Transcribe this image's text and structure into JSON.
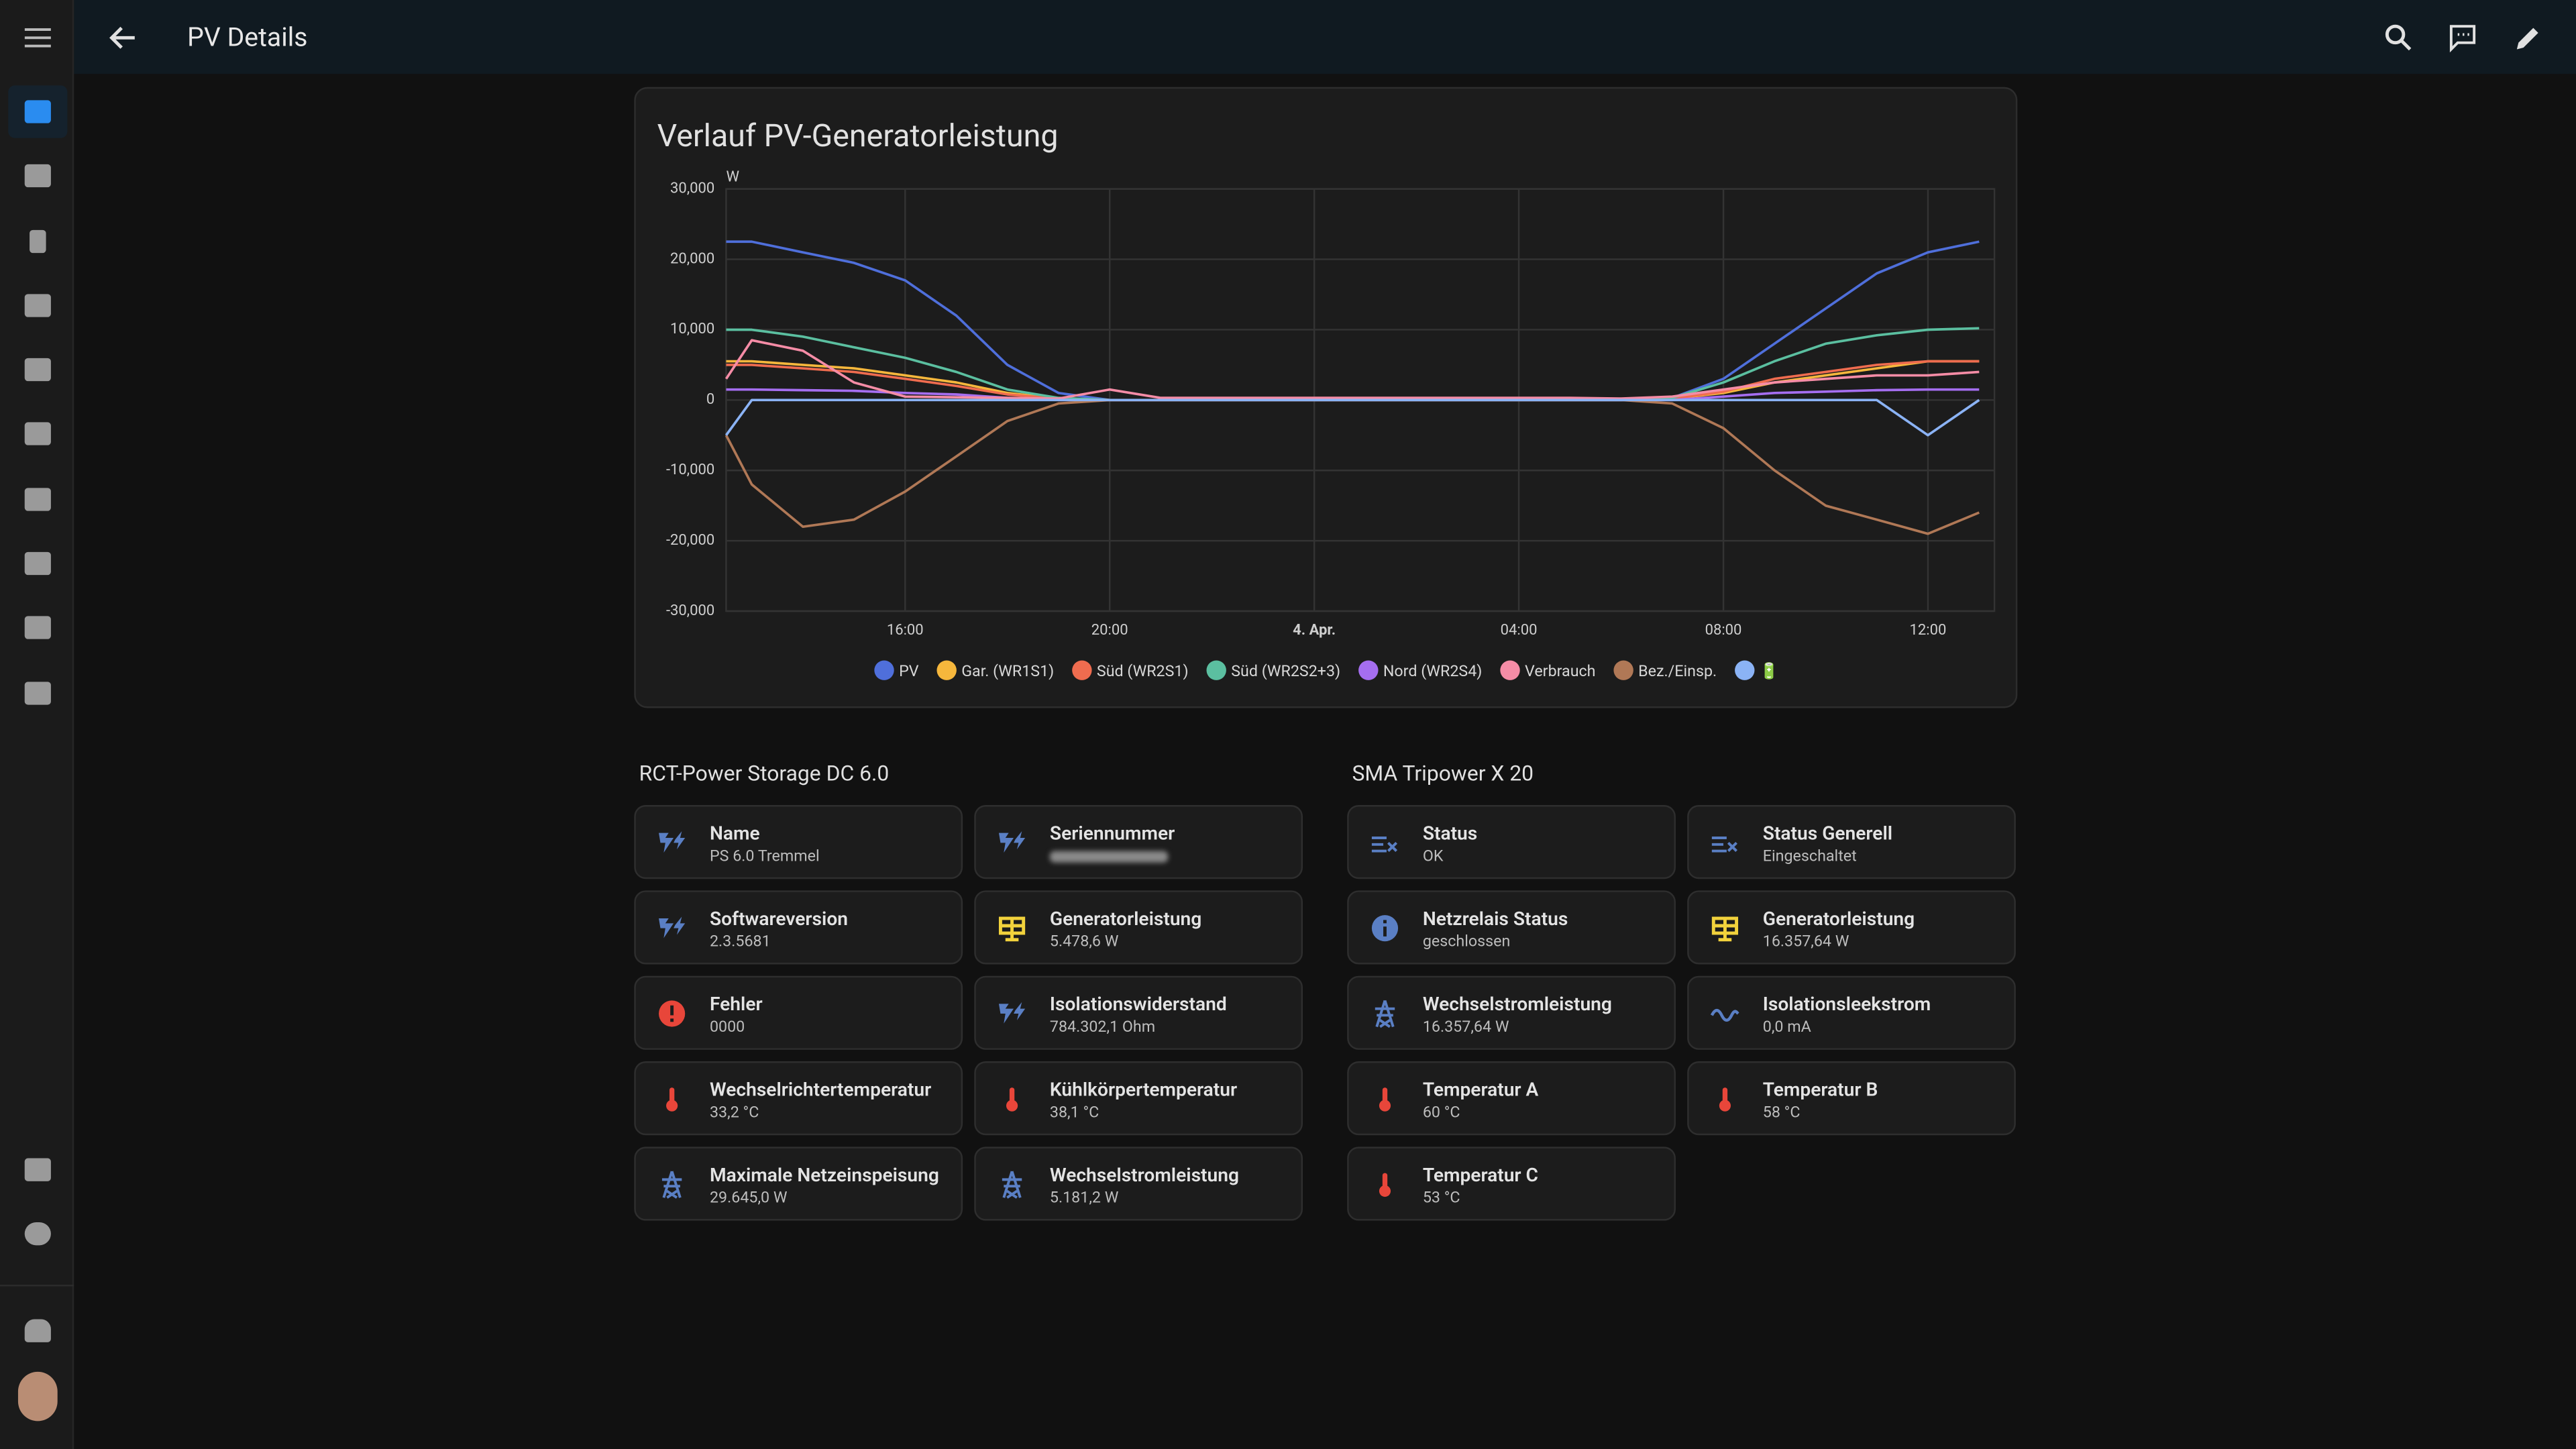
{
  "header": {
    "title": "PV Details"
  },
  "chart_data": {
    "type": "line",
    "title": "Verlauf PV-Generatorleistung",
    "y_label": "W",
    "x": [
      12.5,
      13,
      14,
      15,
      16,
      17,
      18,
      19,
      20,
      21,
      22,
      23,
      24,
      25,
      26,
      27,
      28,
      29,
      30,
      31,
      32,
      33,
      34,
      35,
      36,
      37
    ],
    "xlim": [
      12.5,
      37.3
    ],
    "xticks": [
      {
        "value": 16,
        "label": "16:00"
      },
      {
        "value": 20,
        "label": "20:00"
      },
      {
        "value": 24,
        "label": "4. Apr."
      },
      {
        "value": 28,
        "label": "04:00"
      },
      {
        "value": 32,
        "label": "08:00"
      },
      {
        "value": 36,
        "label": "12:00"
      }
    ],
    "ylim": [
      -30000,
      30000
    ],
    "yticks": [
      {
        "value": -30000,
        "label": "-30,000"
      },
      {
        "value": -20000,
        "label": "-20,000"
      },
      {
        "value": -10000,
        "label": "-10,000"
      },
      0,
      {
        "value": 10000,
        "label": "10,000"
      },
      {
        "value": 20000,
        "label": "20,000"
      },
      {
        "value": 30000,
        "label": "30,000"
      }
    ],
    "grid": true,
    "series": [
      {
        "name": "PV",
        "color": "#4f6fdb",
        "values": [
          22500,
          22500,
          21000,
          19500,
          17000,
          12000,
          5000,
          1000,
          0,
          0,
          0,
          0,
          0,
          0,
          0,
          0,
          0,
          0,
          0,
          300,
          3000,
          8000,
          13000,
          18000,
          21000,
          22500
        ]
      },
      {
        "name": "Gar. (WR1S1)",
        "color": "#f6b73c",
        "values": [
          5500,
          5500,
          5000,
          4500,
          3500,
          2500,
          1000,
          200,
          0,
          0,
          0,
          0,
          0,
          0,
          0,
          0,
          0,
          0,
          0,
          200,
          1000,
          2500,
          3500,
          4500,
          5500,
          5500
        ]
      },
      {
        "name": "Süd (WR2S1)",
        "color": "#ef6c4f",
        "values": [
          5000,
          5000,
          4500,
          4000,
          3000,
          2000,
          800,
          200,
          0,
          0,
          0,
          0,
          0,
          0,
          0,
          0,
          0,
          0,
          0,
          200,
          1200,
          3000,
          4000,
          5000,
          5500,
          5500
        ]
      },
      {
        "name": "Süd (WR2S2+3)",
        "color": "#5bbfa0",
        "values": [
          10000,
          10000,
          9000,
          7500,
          6000,
          4000,
          1500,
          300,
          0,
          0,
          0,
          0,
          0,
          0,
          0,
          0,
          0,
          0,
          0,
          300,
          2500,
          5500,
          8000,
          9200,
          10000,
          10200
        ]
      },
      {
        "name": "Nord (WR2S4)",
        "color": "#a56ef0",
        "values": [
          1500,
          1500,
          1400,
          1300,
          1000,
          800,
          300,
          0,
          0,
          0,
          0,
          0,
          0,
          0,
          0,
          0,
          0,
          0,
          0,
          0,
          500,
          1000,
          1200,
          1400,
          1500,
          1500
        ]
      },
      {
        "name": "Verbrauch",
        "color": "#f58ca6",
        "values": [
          3000,
          8500,
          7000,
          2500,
          500,
          400,
          300,
          200,
          1500,
          300,
          300,
          300,
          300,
          300,
          300,
          300,
          300,
          300,
          200,
          500,
          1500,
          2500,
          3000,
          3500,
          3500,
          4000
        ]
      },
      {
        "name": "Bez./Einsp.",
        "color": "#b07856",
        "values": [
          -5000,
          -12000,
          -18000,
          -17000,
          -13000,
          -8000,
          -3000,
          -500,
          0,
          0,
          0,
          0,
          0,
          0,
          0,
          0,
          0,
          0,
          0,
          -500,
          -4000,
          -10000,
          -15000,
          -17000,
          -19000,
          -16000
        ]
      },
      {
        "name": "🔋",
        "color": "#8bb3f5",
        "values": [
          -5000,
          0,
          0,
          0,
          0,
          0,
          0,
          0,
          0,
          0,
          0,
          0,
          0,
          0,
          0,
          0,
          0,
          0,
          0,
          0,
          0,
          0,
          0,
          0,
          -5000,
          0
        ]
      }
    ]
  },
  "sections": [
    {
      "title": "RCT-Power Storage DC 6.0",
      "cards": [
        {
          "name": "Name",
          "state": "PS 6.0 Tremmel"
        },
        {
          "name": "Seriennummer"
        },
        {
          "name": "Softwareversion",
          "state": "2.3.5681"
        },
        {
          "name": "Generatorleistung",
          "state": "5.478,6 W"
        },
        {
          "name": "Fehler",
          "state": "0000"
        },
        {
          "name": "Isolationswiderstand",
          "state": "784.302,1 Ohm"
        },
        {
          "name": "Wechselrichtertemperatur",
          "state": "33,2 °C"
        },
        {
          "name": "Kühlkörpertemperatur",
          "state": "38,1 °C"
        },
        {
          "name": "Maximale Netzeinspeisung",
          "state": "29.645,0 W"
        },
        {
          "name": "Wechselstromleistung",
          "state": "5.181,2 W"
        }
      ]
    },
    {
      "title": "SMA Tripower X 20",
      "cards": [
        {
          "name": "Status",
          "state": "OK"
        },
        {
          "name": "Status Generell",
          "state": "Eingeschaltet"
        },
        {
          "name": "Netzrelais Status",
          "state": "geschlossen"
        },
        {
          "name": "Generatorleistung",
          "state": "16.357,64 W"
        },
        {
          "name": "Wechselstromleistung",
          "state": "16.357,64 W"
        },
        {
          "name": "Isolationsleekstrom",
          "state": "0,0 mA"
        },
        {
          "name": "Temperatur A",
          "state": "60 °C"
        },
        {
          "name": "Temperatur B",
          "state": "58 °C"
        },
        {
          "name": "Temperatur C",
          "state": "53 °C"
        }
      ]
    }
  ]
}
